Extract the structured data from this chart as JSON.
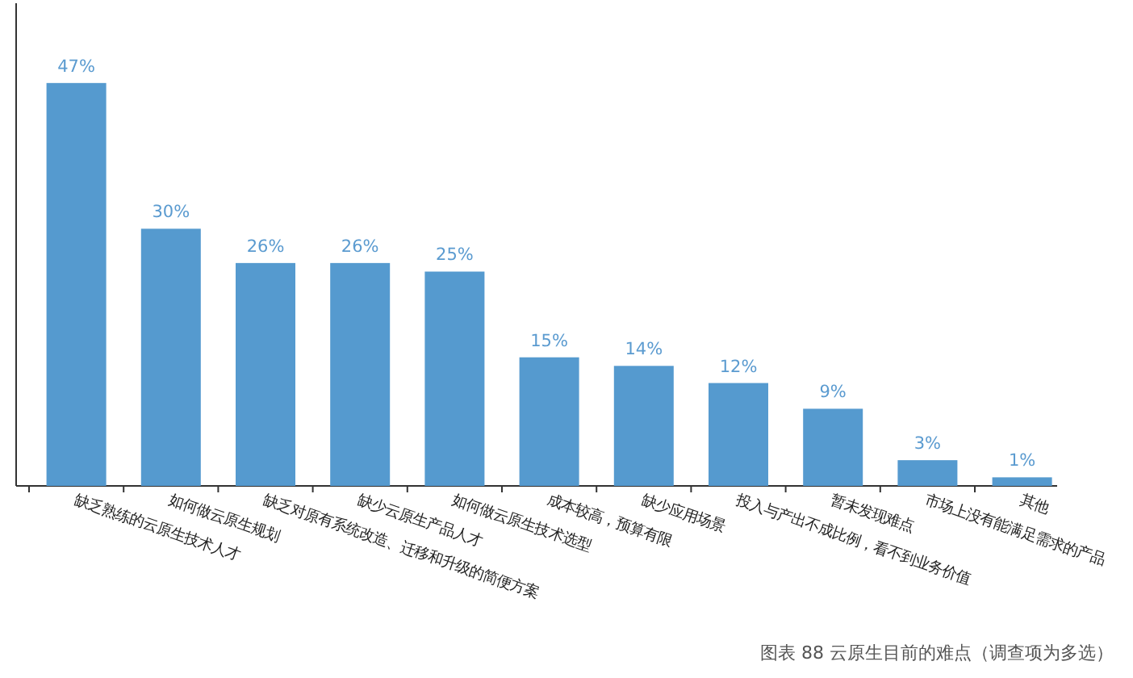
{
  "chart_data": {
    "type": "bar",
    "categories": [
      "缺乏熟练的云原生技术人才",
      "如何做云原生规划",
      "缺乏对原有系统改造、迁移和升级的简便方案",
      "缺少云原生产品人才",
      "如何做云原生技术选型",
      "成本较高，预算有限",
      "缺少应用场景",
      "投入与产出不成比例，看不到业务价值",
      "暂未发现难点",
      "市场上没有能满足需求的产品",
      "其他"
    ],
    "values": [
      47,
      30,
      26,
      26,
      25,
      15,
      14,
      12,
      9,
      3,
      1
    ],
    "value_labels": [
      "47%",
      "30%",
      "26%",
      "26%",
      "25%",
      "15%",
      "14%",
      "12%",
      "9%",
      "3%",
      "1%"
    ],
    "color": "#559acf",
    "annotations": [
      "图表 88  云原生目前的难点（调查项为多选）"
    ]
  }
}
